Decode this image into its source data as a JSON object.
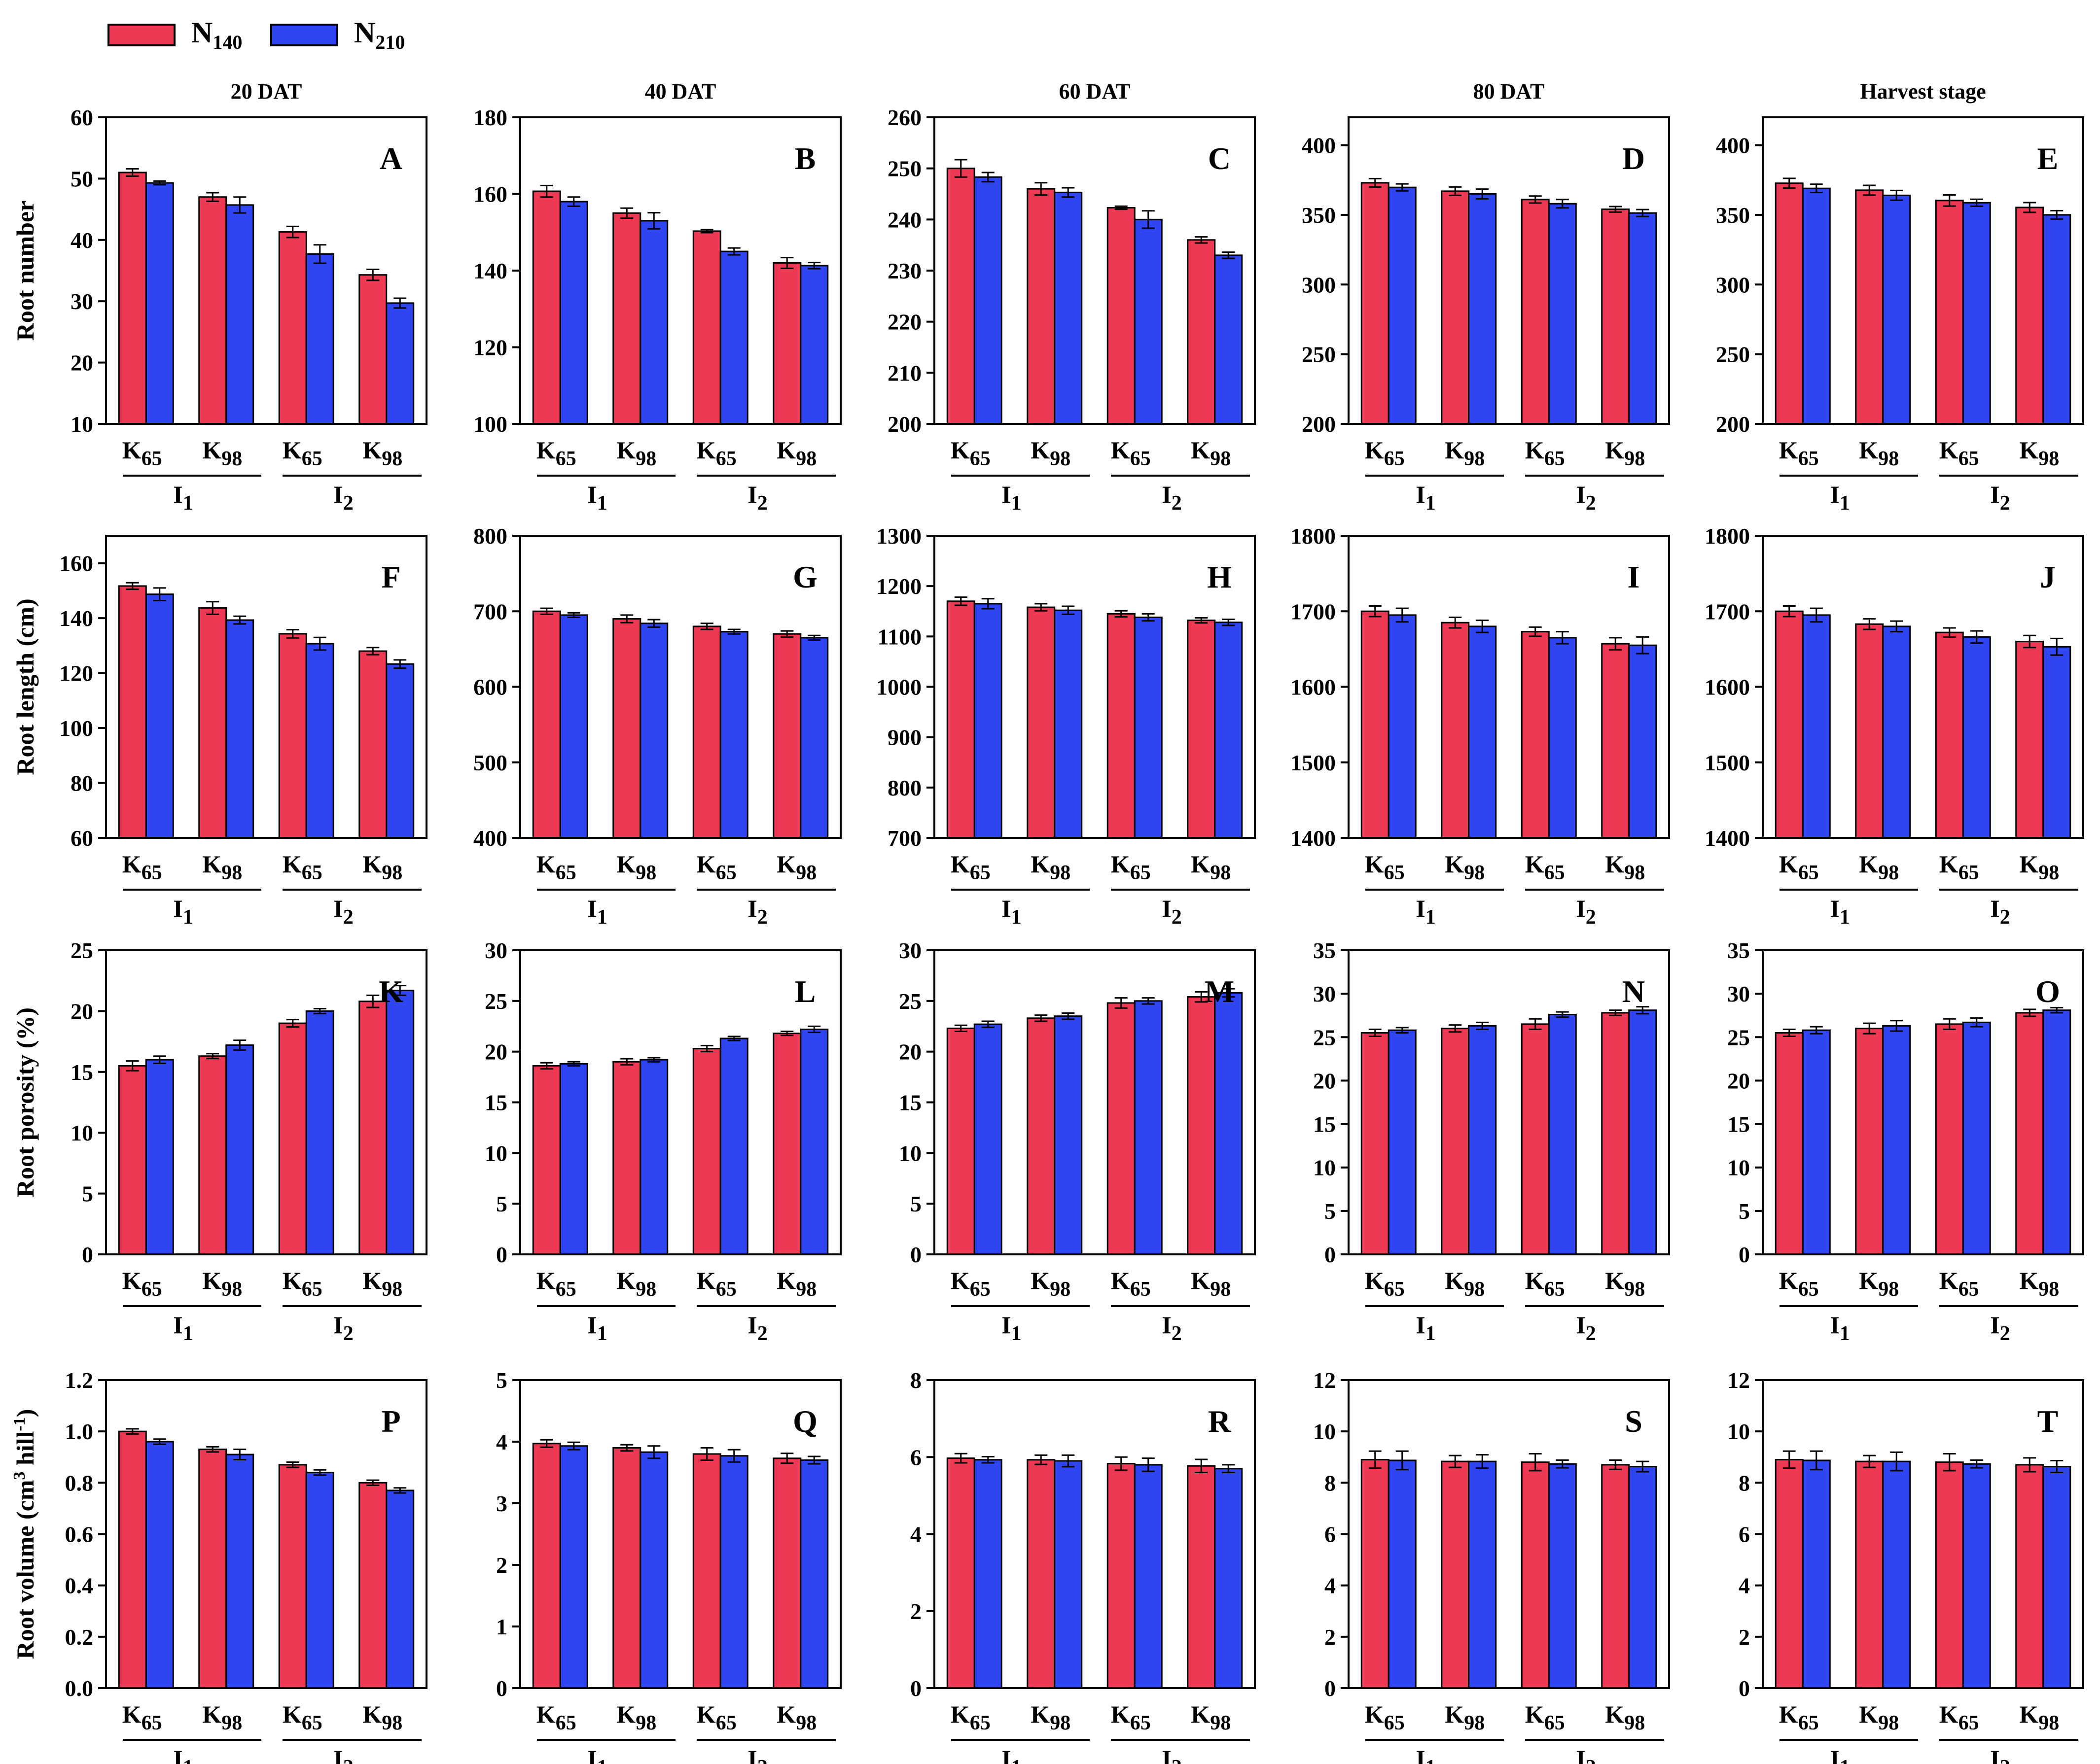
{
  "legend": [
    {
      "name": "N",
      "sub": "140",
      "color": "#EE3955"
    },
    {
      "name": "N",
      "sub": "210",
      "color": "#2F45F2"
    }
  ],
  "column_titles": [
    "20 DAT",
    "40 DAT",
    "60 DAT",
    "80 DAT",
    "Harvest stage"
  ],
  "row_labels": [
    {
      "text": "Root number"
    },
    {
      "text": "Root length (cm)"
    },
    {
      "text": "Root porosity (%)"
    },
    {
      "text": "Root volume (cm",
      "sup1": "3",
      "mid": " hill",
      "sup2": "-1",
      "end": ")"
    }
  ],
  "categories": [
    {
      "label": "K",
      "sub": "65"
    },
    {
      "label": "K",
      "sub": "98"
    },
    {
      "label": "K",
      "sub": "65"
    },
    {
      "label": "K",
      "sub": "98"
    }
  ],
  "groups": [
    {
      "label": "I",
      "sub": "1"
    },
    {
      "label": "I",
      "sub": "2"
    }
  ],
  "chart_data": [
    {
      "type": "bar",
      "panel": "A",
      "ylim": [
        10,
        60
      ],
      "ticks": [
        10,
        20,
        30,
        40,
        50,
        60
      ],
      "series": [
        {
          "name": "N140",
          "values": [
            51,
            47,
            41.3,
            34.3
          ],
          "err": [
            0.6,
            0.7,
            0.9,
            0.9
          ]
        },
        {
          "name": "N210",
          "values": [
            49.3,
            45.7,
            37.7,
            29.7
          ],
          "err": [
            0.3,
            1.3,
            1.5,
            0.8
          ]
        }
      ]
    },
    {
      "type": "bar",
      "panel": "B",
      "ylim": [
        100,
        180
      ],
      "ticks": [
        100,
        120,
        140,
        160,
        180
      ],
      "series": [
        {
          "name": "N140",
          "values": [
            160.7,
            155,
            150.3,
            142
          ],
          "err": [
            1.5,
            1.3,
            0.4,
            1.4
          ]
        },
        {
          "name": "N210",
          "values": [
            158,
            153,
            145,
            141.3
          ],
          "err": [
            1.2,
            2.1,
            0.9,
            0.8
          ]
        }
      ]
    },
    {
      "type": "bar",
      "panel": "C",
      "ylim": [
        200,
        260
      ],
      "ticks": [
        200,
        210,
        220,
        230,
        240,
        250,
        260
      ],
      "series": [
        {
          "name": "N140",
          "values": [
            250,
            246,
            242.3,
            236
          ],
          "err": [
            1.7,
            1.2,
            0.3,
            0.6
          ]
        },
        {
          "name": "N210",
          "values": [
            248.3,
            245.3,
            240,
            233
          ],
          "err": [
            0.9,
            0.9,
            1.7,
            0.6
          ]
        }
      ]
    },
    {
      "type": "bar",
      "panel": "D",
      "ylim": [
        200,
        420
      ],
      "ticks": [
        200,
        250,
        300,
        350,
        400
      ],
      "series": [
        {
          "name": "N140",
          "values": [
            373,
            367,
            361,
            354
          ],
          "err": [
            3,
            3,
            2.5,
            2
          ]
        },
        {
          "name": "N210",
          "values": [
            369.7,
            365,
            358,
            351.3
          ],
          "err": [
            2.5,
            3.5,
            3,
            2.5
          ]
        }
      ]
    },
    {
      "type": "bar",
      "panel": "E",
      "ylim": [
        200,
        420
      ],
      "ticks": [
        200,
        250,
        300,
        350,
        400
      ],
      "series": [
        {
          "name": "N140",
          "values": [
            372.7,
            367.7,
            360.3,
            355.3
          ],
          "err": [
            3.5,
            3.5,
            4,
            3.5
          ]
        },
        {
          "name": "N210",
          "values": [
            369,
            364,
            358.7,
            350
          ],
          "err": [
            3,
            3.5,
            2.5,
            3
          ]
        }
      ]
    },
    {
      "type": "bar",
      "panel": "F",
      "ylim": [
        60,
        170
      ],
      "ticks": [
        60,
        80,
        100,
        120,
        140,
        160
      ],
      "series": [
        {
          "name": "N140",
          "values": [
            151.7,
            143.7,
            134.3,
            128
          ],
          "err": [
            1.2,
            2.3,
            1.5,
            1.3
          ]
        },
        {
          "name": "N210",
          "values": [
            148.7,
            139.3,
            130.7,
            123.3
          ],
          "err": [
            2.3,
            1.4,
            2.3,
            1.5
          ]
        }
      ]
    },
    {
      "type": "bar",
      "panel": "G",
      "ylim": [
        400,
        800
      ],
      "ticks": [
        400,
        500,
        600,
        700,
        800
      ],
      "series": [
        {
          "name": "N140",
          "values": [
            700,
            690,
            680,
            670
          ],
          "err": [
            4,
            5,
            4,
            4
          ]
        },
        {
          "name": "N210",
          "values": [
            695,
            684,
            673,
            665
          ],
          "err": [
            3,
            5,
            3,
            3
          ]
        }
      ]
    },
    {
      "type": "bar",
      "panel": "H",
      "ylim": [
        700,
        1300
      ],
      "ticks": [
        700,
        800,
        900,
        1000,
        1100,
        1200,
        1300
      ],
      "series": [
        {
          "name": "N140",
          "values": [
            1170,
            1158,
            1145,
            1132
          ],
          "err": [
            8,
            7,
            6,
            5
          ]
        },
        {
          "name": "N210",
          "values": [
            1165,
            1152,
            1138,
            1128
          ],
          "err": [
            10,
            8,
            7,
            6
          ]
        }
      ]
    },
    {
      "type": "bar",
      "panel": "I",
      "ylim": [
        1400,
        1800
      ],
      "ticks": [
        1400,
        1500,
        1600,
        1700,
        1800
      ],
      "series": [
        {
          "name": "N140",
          "values": [
            1700,
            1685,
            1673,
            1657
          ],
          "err": [
            7,
            7,
            6,
            8
          ]
        },
        {
          "name": "N210",
          "values": [
            1695,
            1680,
            1665,
            1655
          ],
          "err": [
            9,
            8,
            8,
            11
          ]
        }
      ]
    },
    {
      "type": "bar",
      "panel": "J",
      "ylim": [
        1400,
        1800
      ],
      "ticks": [
        1400,
        1500,
        1600,
        1700,
        1800
      ],
      "series": [
        {
          "name": "N140",
          "values": [
            1700,
            1683,
            1672,
            1660
          ],
          "err": [
            7,
            7,
            6,
            8
          ]
        },
        {
          "name": "N210",
          "values": [
            1695,
            1680,
            1666,
            1653
          ],
          "err": [
            9,
            7,
            8,
            11
          ]
        }
      ]
    },
    {
      "type": "bar",
      "panel": "K",
      "ylim": [
        0,
        25
      ],
      "ticks": [
        0,
        5,
        10,
        15,
        20,
        25
      ],
      "series": [
        {
          "name": "N140",
          "values": [
            15.5,
            16.3,
            19,
            20.8
          ],
          "err": [
            0.4,
            0.2,
            0.3,
            0.5
          ]
        },
        {
          "name": "N210",
          "values": [
            16,
            17.2,
            20,
            21.7
          ],
          "err": [
            0.3,
            0.4,
            0.2,
            0.4
          ]
        }
      ]
    },
    {
      "type": "bar",
      "panel": "L",
      "ylim": [
        0,
        30
      ],
      "ticks": [
        0,
        5,
        10,
        15,
        20,
        25,
        30
      ],
      "series": [
        {
          "name": "N140",
          "values": [
            18.6,
            19,
            20.3,
            21.8
          ],
          "err": [
            0.3,
            0.3,
            0.3,
            0.2
          ]
        },
        {
          "name": "N210",
          "values": [
            18.8,
            19.2,
            21.3,
            22.2
          ],
          "err": [
            0.2,
            0.2,
            0.2,
            0.3
          ]
        }
      ]
    },
    {
      "type": "bar",
      "panel": "M",
      "ylim": [
        0,
        30
      ],
      "ticks": [
        0,
        5,
        10,
        15,
        20,
        25,
        30
      ],
      "series": [
        {
          "name": "N140",
          "values": [
            22.3,
            23.3,
            24.8,
            25.4
          ],
          "err": [
            0.3,
            0.3,
            0.5,
            0.5
          ]
        },
        {
          "name": "N210",
          "values": [
            22.7,
            23.5,
            25,
            25.8
          ],
          "err": [
            0.3,
            0.3,
            0.3,
            0.4
          ]
        }
      ]
    },
    {
      "type": "bar",
      "panel": "N",
      "ylim": [
        0,
        35
      ],
      "ticks": [
        0,
        5,
        10,
        15,
        20,
        25,
        30,
        35
      ],
      "series": [
        {
          "name": "N140",
          "values": [
            25.5,
            26,
            26.5,
            27.8
          ],
          "err": [
            0.4,
            0.4,
            0.6,
            0.3
          ]
        },
        {
          "name": "N210",
          "values": [
            25.8,
            26.3,
            27.6,
            28.1
          ],
          "err": [
            0.3,
            0.4,
            0.3,
            0.4
          ]
        }
      ]
    },
    {
      "type": "bar",
      "panel": "O",
      "ylim": [
        0,
        35
      ],
      "ticks": [
        0,
        5,
        10,
        15,
        20,
        25,
        30,
        35
      ],
      "series": [
        {
          "name": "N140",
          "values": [
            25.5,
            26,
            26.5,
            27.8
          ],
          "err": [
            0.4,
            0.6,
            0.6,
            0.4
          ]
        },
        {
          "name": "N210",
          "values": [
            25.8,
            26.3,
            26.7,
            28.1
          ],
          "err": [
            0.4,
            0.6,
            0.5,
            0.3
          ]
        }
      ]
    },
    {
      "type": "bar",
      "panel": "P",
      "ylim": [
        0,
        1.2
      ],
      "ticks": [
        0.0,
        0.2,
        0.4,
        0.6,
        0.8,
        1.0,
        1.2
      ],
      "decimals": 1,
      "series": [
        {
          "name": "N140",
          "values": [
            1,
            0.93,
            0.87,
            0.8
          ],
          "err": [
            0.01,
            0.01,
            0.01,
            0.01
          ]
        },
        {
          "name": "N210",
          "values": [
            0.96,
            0.91,
            0.84,
            0.77
          ],
          "err": [
            0.01,
            0.02,
            0.01,
            0.01
          ]
        }
      ]
    },
    {
      "type": "bar",
      "panel": "Q",
      "ylim": [
        0,
        5
      ],
      "ticks": [
        0,
        1,
        2,
        3,
        4,
        5
      ],
      "series": [
        {
          "name": "N140",
          "values": [
            3.97,
            3.9,
            3.8,
            3.73
          ],
          "err": [
            0.06,
            0.05,
            0.1,
            0.08
          ]
        },
        {
          "name": "N210",
          "values": [
            3.93,
            3.83,
            3.77,
            3.7
          ],
          "err": [
            0.06,
            0.1,
            0.1,
            0.06
          ]
        }
      ]
    },
    {
      "type": "bar",
      "panel": "R",
      "ylim": [
        0,
        8
      ],
      "ticks": [
        0,
        2,
        4,
        6,
        8
      ],
      "series": [
        {
          "name": "N140",
          "values": [
            5.97,
            5.93,
            5.83,
            5.77
          ],
          "err": [
            0.12,
            0.12,
            0.17,
            0.17
          ]
        },
        {
          "name": "N210",
          "values": [
            5.93,
            5.9,
            5.8,
            5.7
          ],
          "err": [
            0.08,
            0.15,
            0.17,
            0.1
          ]
        }
      ]
    },
    {
      "type": "bar",
      "panel": "S",
      "ylim": [
        0,
        12
      ],
      "ticks": [
        0,
        2,
        4,
        6,
        8,
        10,
        12
      ],
      "series": [
        {
          "name": "N140",
          "values": [
            8.9,
            8.83,
            8.8,
            8.7
          ],
          "err": [
            0.33,
            0.23,
            0.33,
            0.18
          ]
        },
        {
          "name": "N210",
          "values": [
            8.87,
            8.83,
            8.73,
            8.63
          ],
          "err": [
            0.36,
            0.26,
            0.15,
            0.2
          ]
        }
      ]
    },
    {
      "type": "bar",
      "panel": "T",
      "ylim": [
        0,
        12
      ],
      "ticks": [
        0,
        2,
        4,
        6,
        8,
        10,
        12
      ],
      "series": [
        {
          "name": "N140",
          "values": [
            8.9,
            8.83,
            8.8,
            8.7
          ],
          "err": [
            0.33,
            0.23,
            0.33,
            0.27
          ]
        },
        {
          "name": "N210",
          "values": [
            8.87,
            8.83,
            8.73,
            8.63
          ],
          "err": [
            0.36,
            0.36,
            0.15,
            0.23
          ]
        }
      ]
    }
  ]
}
